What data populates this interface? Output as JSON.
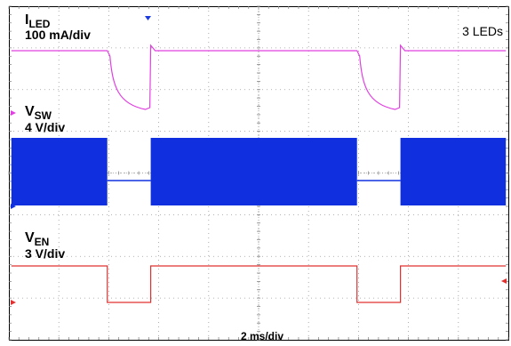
{
  "chart_data": {
    "type": "line",
    "title": "",
    "annotation_top_right": "3 LEDs",
    "xlabel": "2 ms/div",
    "x_divisions": 10,
    "y_divisions": 8,
    "grid": true,
    "series": [
      {
        "name": "I",
        "subscript": "LED",
        "scale": "100 mA/div",
        "color": "#e040e0",
        "kind": "pulse_decay",
        "x": [
          0.0,
          3.8,
          3.8,
          5.4,
          5.4,
          5.6,
          10.0
        ],
        "y_div": [
          6.3,
          6.3,
          6.1,
          4.9,
          6.4,
          6.3,
          6.3
        ]
      },
      {
        "name": "V",
        "subscript": "SW",
        "scale": "4 V/div",
        "color": "#1030e0",
        "kind": "switching_band",
        "x": [
          0.0,
          3.8,
          3.8,
          5.4,
          5.4,
          13.7,
          13.7,
          15.4,
          15.4,
          20.0
        ],
        "band_high_div": 5.47,
        "band_low_div": 3.6,
        "gap_level_div": 4.15
      },
      {
        "name": "V",
        "subscript": "EN",
        "scale": "3 V/div",
        "color": "#e03030",
        "kind": "pulse",
        "high_div": 1.9,
        "low_div": 0.9
      }
    ],
    "off_intervals_div": [
      [
        3.8,
        5.4
      ],
      [
        13.7,
        15.4
      ]
    ]
  }
}
